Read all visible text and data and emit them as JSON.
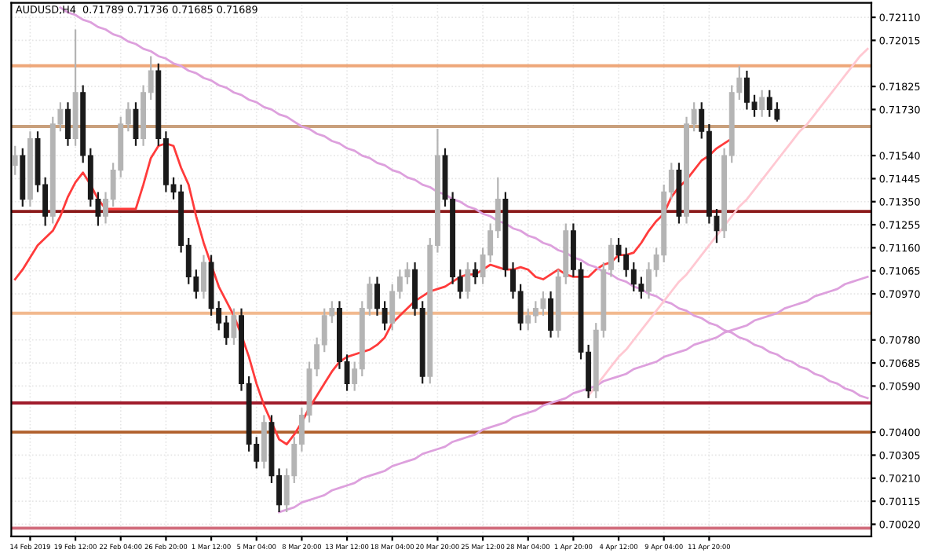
{
  "chart_data": {
    "type": "candlestick",
    "title": "AUDUSD,H4  0.71789 0.71736 0.71685 0.71689",
    "categories": [
      null,
      null,
      "14 Feb 2019",
      null,
      null,
      null,
      null,
      null,
      "19 Feb 12:00",
      null,
      null,
      null,
      null,
      null,
      "22 Feb 04:00",
      null,
      null,
      null,
      null,
      null,
      "26 Feb 20:00",
      null,
      null,
      null,
      null,
      null,
      "1 Mar 12:00",
      null,
      null,
      null,
      null,
      null,
      "5 Mar 04:00",
      null,
      null,
      null,
      null,
      null,
      "8 Mar 20:00",
      null,
      null,
      null,
      null,
      null,
      "13 Mar 12:00",
      null,
      null,
      null,
      null,
      null,
      "18 Mar 04:00",
      null,
      null,
      null,
      null,
      null,
      "20 Mar 20:00",
      null,
      null,
      null,
      null,
      null,
      "25 Mar 12:00",
      null,
      null,
      null,
      null,
      null,
      "28 Mar 04:00",
      null,
      null,
      null,
      null,
      null,
      "1 Apr 20:00",
      null,
      null,
      null,
      null,
      null,
      "4 Apr 12:00",
      null,
      null,
      null,
      null,
      null,
      "9 Apr 04:00",
      null,
      null,
      null,
      null,
      null,
      "11 Apr 20:00",
      null,
      null,
      null,
      null,
      null,
      null,
      null,
      null,
      null,
      null,
      null,
      null,
      null,
      null,
      null,
      null,
      null,
      null,
      null,
      null,
      null
    ],
    "ohlc": [
      [
        0.715,
        0.7158,
        0.7146,
        0.7154
      ],
      [
        0.7154,
        0.7157,
        0.7133,
        0.7136
      ],
      [
        0.7136,
        0.7164,
        0.7133,
        0.7161
      ],
      [
        0.7161,
        0.7164,
        0.7139,
        0.7142
      ],
      [
        0.7142,
        0.7145,
        0.7125,
        0.7129
      ],
      [
        0.7129,
        0.717,
        0.7126,
        0.7167
      ],
      [
        0.7167,
        0.7176,
        0.7164,
        0.7173
      ],
      [
        0.7173,
        0.7176,
        0.7158,
        0.7161
      ],
      [
        0.7161,
        0.7206,
        0.7158,
        0.718
      ],
      [
        0.718,
        0.7183,
        0.7151,
        0.7154
      ],
      [
        0.7154,
        0.7157,
        0.7133,
        0.7136
      ],
      [
        0.7136,
        0.7139,
        0.7125,
        0.7129
      ],
      [
        0.7129,
        0.7139,
        0.7126,
        0.7136
      ],
      [
        0.7136,
        0.7151,
        0.7133,
        0.7148
      ],
      [
        0.7148,
        0.717,
        0.7145,
        0.7167
      ],
      [
        0.7167,
        0.7176,
        0.7164,
        0.7173
      ],
      [
        0.7173,
        0.7176,
        0.7158,
        0.7161
      ],
      [
        0.7161,
        0.7183,
        0.7158,
        0.718
      ],
      [
        0.718,
        0.7195,
        0.7177,
        0.7189
      ],
      [
        0.7189,
        0.7192,
        0.7158,
        0.7161
      ],
      [
        0.7161,
        0.7164,
        0.7139,
        0.7142
      ],
      [
        0.7142,
        0.7145,
        0.7136,
        0.7139
      ],
      [
        0.7139,
        0.7142,
        0.7114,
        0.7117
      ],
      [
        0.7117,
        0.712,
        0.7101,
        0.7104
      ],
      [
        0.7104,
        0.7107,
        0.7095,
        0.7098
      ],
      [
        0.7098,
        0.7113,
        0.7095,
        0.711
      ],
      [
        0.711,
        0.7113,
        0.7088,
        0.7091
      ],
      [
        0.7091,
        0.7094,
        0.7082,
        0.7085
      ],
      [
        0.7085,
        0.7088,
        0.7076,
        0.7079
      ],
      [
        0.7079,
        0.7091,
        0.7076,
        0.7088
      ],
      [
        0.7088,
        0.7091,
        0.7057,
        0.706
      ],
      [
        0.706,
        0.7063,
        0.7032,
        0.7035
      ],
      [
        0.7035,
        0.7038,
        0.7025,
        0.7028
      ],
      [
        0.7028,
        0.7047,
        0.7025,
        0.7044
      ],
      [
        0.7044,
        0.7047,
        0.7019,
        0.7022
      ],
      [
        0.7022,
        0.7025,
        0.7007,
        0.701
      ],
      [
        0.701,
        0.7025,
        0.7007,
        0.7022
      ],
      [
        0.7022,
        0.7038,
        0.7019,
        0.7035
      ],
      [
        0.7035,
        0.705,
        0.7032,
        0.7047
      ],
      [
        0.7047,
        0.7069,
        0.7044,
        0.7066
      ],
      [
        0.7066,
        0.7079,
        0.7063,
        0.7076
      ],
      [
        0.7076,
        0.7091,
        0.7073,
        0.7088
      ],
      [
        0.7088,
        0.7094,
        0.7085,
        0.7091
      ],
      [
        0.7091,
        0.7094,
        0.7066,
        0.7069
      ],
      [
        0.7069,
        0.7072,
        0.7057,
        0.706
      ],
      [
        0.706,
        0.7069,
        0.7057,
        0.7066
      ],
      [
        0.7066,
        0.7094,
        0.7063,
        0.7091
      ],
      [
        0.7091,
        0.7104,
        0.7088,
        0.7101
      ],
      [
        0.7101,
        0.7104,
        0.7088,
        0.7091
      ],
      [
        0.7091,
        0.7094,
        0.7082,
        0.7085
      ],
      [
        0.7085,
        0.7101,
        0.7082,
        0.7098
      ],
      [
        0.7098,
        0.7107,
        0.7095,
        0.7104
      ],
      [
        0.7104,
        0.711,
        0.7101,
        0.7107
      ],
      [
        0.7107,
        0.711,
        0.7088,
        0.7091
      ],
      [
        0.7091,
        0.7094,
        0.706,
        0.7063
      ],
      [
        0.7063,
        0.712,
        0.706,
        0.7117
      ],
      [
        0.7117,
        0.7165,
        0.7114,
        0.7154
      ],
      [
        0.7154,
        0.7157,
        0.7133,
        0.7136
      ],
      [
        0.7136,
        0.7139,
        0.7101,
        0.7104
      ],
      [
        0.7104,
        0.7107,
        0.7095,
        0.7098
      ],
      [
        0.7098,
        0.711,
        0.7095,
        0.7107
      ],
      [
        0.7107,
        0.711,
        0.7101,
        0.7104
      ],
      [
        0.7104,
        0.7116,
        0.7101,
        0.7113
      ],
      [
        0.7113,
        0.7126,
        0.711,
        0.7123
      ],
      [
        0.7123,
        0.7145,
        0.712,
        0.7136
      ],
      [
        0.7136,
        0.7139,
        0.7104,
        0.7107
      ],
      [
        0.7107,
        0.711,
        0.7095,
        0.7098
      ],
      [
        0.7098,
        0.7101,
        0.7082,
        0.7085
      ],
      [
        0.7085,
        0.7091,
        0.7082,
        0.7088
      ],
      [
        0.7088,
        0.7094,
        0.7085,
        0.7091
      ],
      [
        0.7091,
        0.7098,
        0.7088,
        0.7095
      ],
      [
        0.7095,
        0.7098,
        0.7079,
        0.7082
      ],
      [
        0.7082,
        0.7107,
        0.7079,
        0.7104
      ],
      [
        0.7104,
        0.7126,
        0.7101,
        0.7123
      ],
      [
        0.7123,
        0.7126,
        0.7104,
        0.7107
      ],
      [
        0.7107,
        0.711,
        0.707,
        0.7073
      ],
      [
        0.7073,
        0.7076,
        0.7054,
        0.7057
      ],
      [
        0.7057,
        0.7085,
        0.7054,
        0.7082
      ],
      [
        0.7082,
        0.711,
        0.7079,
        0.7107
      ],
      [
        0.7107,
        0.712,
        0.7104,
        0.7117
      ],
      [
        0.7117,
        0.712,
        0.711,
        0.7113
      ],
      [
        0.7113,
        0.7116,
        0.7104,
        0.7107
      ],
      [
        0.7107,
        0.711,
        0.7098,
        0.7101
      ],
      [
        0.7101,
        0.7104,
        0.7095,
        0.7098
      ],
      [
        0.7098,
        0.711,
        0.7095,
        0.7107
      ],
      [
        0.7107,
        0.7116,
        0.7104,
        0.7113
      ],
      [
        0.7113,
        0.7142,
        0.711,
        0.7139
      ],
      [
        0.7139,
        0.7151,
        0.7136,
        0.7148
      ],
      [
        0.7148,
        0.7151,
        0.7126,
        0.7129
      ],
      [
        0.7129,
        0.717,
        0.7126,
        0.7167
      ],
      [
        0.7167,
        0.7176,
        0.7164,
        0.7173
      ],
      [
        0.7173,
        0.7176,
        0.7161,
        0.7164
      ],
      [
        0.7164,
        0.7167,
        0.7126,
        0.7129
      ],
      [
        0.7129,
        0.7132,
        0.7118,
        0.7123
      ],
      [
        0.7123,
        0.7157,
        0.712,
        0.7154
      ],
      [
        0.7154,
        0.7183,
        0.7151,
        0.718
      ],
      [
        0.718,
        0.7191,
        0.7177,
        0.7186
      ],
      [
        0.7186,
        0.7189,
        0.7173,
        0.7176
      ],
      [
        0.7176,
        0.7179,
        0.717,
        0.7173
      ],
      [
        0.7173,
        0.7181,
        0.717,
        0.7178
      ],
      [
        0.7178,
        0.7181,
        0.717,
        0.7173
      ],
      [
        0.7173,
        0.7176,
        0.7168,
        0.71689
      ],
      null,
      null,
      null,
      null,
      null,
      null,
      null,
      null,
      null,
      null,
      null,
      null
    ],
    "colors": [
      "#b4b4b4",
      "#1a1a1a",
      "#b4b4b4",
      "#1a1a1a",
      "#1a1a1a",
      "#b4b4b4",
      "#b4b4b4",
      "#1a1a1a",
      "#b4b4b4",
      "#1a1a1a",
      "#1a1a1a",
      "#1a1a1a",
      "#b4b4b4",
      "#b4b4b4",
      "#b4b4b4",
      "#b4b4b4",
      "#1a1a1a",
      "#b4b4b4",
      "#b4b4b4",
      "#1a1a1a",
      "#1a1a1a",
      "#1a1a1a",
      "#1a1a1a",
      "#1a1a1a",
      "#1a1a1a",
      "#b4b4b4",
      "#1a1a1a",
      "#1a1a1a",
      "#1a1a1a",
      "#b4b4b4",
      "#1a1a1a",
      "#1a1a1a",
      "#1a1a1a",
      "#b4b4b4",
      "#1a1a1a",
      "#1a1a1a",
      "#b4b4b4",
      "#b4b4b4",
      "#b4b4b4",
      "#b4b4b4",
      "#b4b4b4",
      "#b4b4b4",
      "#b4b4b4",
      "#1a1a1a",
      "#1a1a1a",
      "#b4b4b4",
      "#b4b4b4",
      "#b4b4b4",
      "#1a1a1a",
      "#1a1a1a",
      "#b4b4b4",
      "#b4b4b4",
      "#b4b4b4",
      "#1a1a1a",
      "#1a1a1a",
      "#b4b4b4",
      "#b4b4b4",
      "#1a1a1a",
      "#1a1a1a",
      "#1a1a1a",
      "#b4b4b4",
      "#1a1a1a",
      "#b4b4b4",
      "#b4b4b4",
      "#b4b4b4",
      "#1a1a1a",
      "#1a1a1a",
      "#1a1a1a",
      "#b4b4b4",
      "#b4b4b4",
      "#b4b4b4",
      "#1a1a1a",
      "#b4b4b4",
      "#b4b4b4",
      "#1a1a1a",
      "#1a1a1a",
      "#1a1a1a",
      "#b4b4b4",
      "#b4b4b4",
      "#b4b4b4",
      "#1a1a1a",
      "#1a1a1a",
      "#1a1a1a",
      "#1a1a1a",
      "#b4b4b4",
      "#b4b4b4",
      "#b4b4b4",
      "#b4b4b4",
      "#1a1a1a",
      "#b4b4b4",
      "#b4b4b4",
      "#1a1a1a",
      "#1a1a1a",
      "#1a1a1a",
      "#b4b4b4",
      "#b4b4b4",
      "#b4b4b4",
      "#1a1a1a",
      "#1a1a1a",
      "#b4b4b4",
      "#1a1a1a",
      "#1a1a1a",
      null,
      null,
      null,
      null,
      null,
      null,
      null,
      null,
      null,
      null,
      null,
      null
    ],
    "series": [
      {
        "type": "line",
        "color": "#ff3b3b",
        "values": [
          0.7103,
          0.7107,
          0.7112,
          0.7117,
          0.712,
          0.7123,
          0.7129,
          0.7137,
          0.7143,
          0.7147,
          0.7142,
          0.7136,
          0.7132,
          0.7132,
          0.7132,
          0.7132,
          0.7132,
          0.7142,
          0.7153,
          0.7158,
          0.7159,
          0.7158,
          0.7149,
          0.7142,
          0.7129,
          0.7118,
          0.7109,
          0.71,
          0.7094,
          0.7088,
          0.708,
          0.7071,
          0.706,
          0.7051,
          0.7044,
          0.7037,
          0.7035,
          0.7039,
          0.7044,
          0.705,
          0.7055,
          0.706,
          0.7065,
          0.7069,
          0.7071,
          0.7072,
          0.7073,
          0.7074,
          0.7076,
          0.7079,
          0.7085,
          0.7088,
          0.7091,
          0.7094,
          0.7096,
          0.7098,
          0.7099,
          0.71,
          0.7102,
          0.7104,
          0.7105,
          0.7105,
          0.7107,
          0.7109,
          0.7108,
          0.7107,
          0.7107,
          0.7108,
          0.7107,
          0.7104,
          0.7103,
          0.7105,
          0.7107,
          0.7105,
          0.7104,
          0.7104,
          0.7104,
          0.7107,
          0.7109,
          0.711,
          0.7113,
          0.7113,
          0.7114,
          0.7118,
          0.7123,
          0.7127,
          0.713,
          0.7137,
          0.7141,
          0.7144,
          0.7148,
          0.7152,
          0.7154,
          0.7157,
          0.7159,
          0.7161,
          null,
          null,
          null,
          null,
          null,
          null,
          null,
          null,
          null,
          null,
          null,
          null,
          null,
          null,
          null,
          null,
          null,
          null
        ]
      },
      {
        "type": "line",
        "color": "#dda0dd",
        "values": [
          null,
          null,
          null,
          null,
          null,
          null,
          0.7215,
          0.7213,
          0.7212,
          0.721,
          0.7209,
          0.7207,
          0.7206,
          0.7204,
          0.7203,
          0.7201,
          0.72,
          0.7198,
          0.7197,
          0.7195,
          0.7194,
          0.7192,
          0.7191,
          0.7189,
          0.7188,
          0.7186,
          0.7185,
          0.7183,
          0.7182,
          0.718,
          0.7179,
          0.7177,
          0.7176,
          0.7174,
          0.7173,
          0.7171,
          0.717,
          0.7168,
          0.7166,
          0.7165,
          0.7163,
          0.7162,
          0.716,
          0.7159,
          0.7157,
          0.7156,
          0.7154,
          0.7153,
          0.7151,
          0.715,
          0.7148,
          0.7147,
          0.7145,
          0.7144,
          0.7142,
          0.7141,
          0.7139,
          0.7138,
          0.7136,
          0.7135,
          0.7133,
          0.7132,
          0.713,
          0.7129,
          0.7127,
          0.7126,
          0.7124,
          0.7123,
          0.7121,
          0.712,
          0.7118,
          0.7117,
          0.7115,
          0.7114,
          0.7112,
          0.7111,
          0.7109,
          0.7108,
          0.7106,
          0.7105,
          0.7103,
          0.7102,
          0.71,
          0.7099,
          0.7097,
          0.7096,
          0.7094,
          0.7093,
          0.7091,
          0.709,
          0.7088,
          0.7087,
          0.7085,
          0.7084,
          0.7082,
          0.7081,
          0.7079,
          0.7078,
          0.7076,
          0.7075,
          0.7073,
          0.7072,
          0.707,
          0.7069,
          0.7067,
          0.7066,
          0.7064,
          0.7063,
          0.7061,
          0.706,
          0.7058,
          0.7057,
          0.7055,
          0.7054
        ]
      },
      {
        "type": "line",
        "color": "#dda0dd",
        "values": [
          null,
          null,
          null,
          null,
          null,
          null,
          null,
          null,
          null,
          null,
          null,
          null,
          null,
          null,
          null,
          null,
          null,
          null,
          null,
          null,
          null,
          null,
          null,
          null,
          null,
          null,
          null,
          null,
          null,
          null,
          null,
          null,
          null,
          null,
          null,
          0.7007,
          0.7008,
          0.7009,
          0.7011,
          0.7012,
          0.7013,
          0.7014,
          0.7016,
          0.7017,
          0.7018,
          0.7019,
          0.7021,
          0.7022,
          0.7023,
          0.7024,
          0.7026,
          0.7027,
          0.7028,
          0.7029,
          0.7031,
          0.7032,
          0.7033,
          0.7034,
          0.7036,
          0.7037,
          0.7038,
          0.7039,
          0.7041,
          0.7042,
          0.7043,
          0.7044,
          0.7046,
          0.7047,
          0.7048,
          0.7049,
          0.7051,
          0.7052,
          0.7053,
          0.7054,
          0.7056,
          0.7057,
          0.7058,
          0.7059,
          0.7061,
          0.7062,
          0.7063,
          0.7064,
          0.7066,
          0.7067,
          0.7068,
          0.7069,
          0.7071,
          0.7072,
          0.7073,
          0.7074,
          0.7076,
          0.7077,
          0.7078,
          0.7079,
          0.7081,
          0.7082,
          0.7083,
          0.7084,
          0.7086,
          0.7087,
          0.7088,
          0.7089,
          0.7091,
          0.7092,
          0.7093,
          0.7094,
          0.7096,
          0.7097,
          0.7098,
          0.7099,
          0.7101,
          0.7102,
          0.7103,
          0.7104
        ]
      },
      {
        "type": "line",
        "color": "#ffc8d2",
        "values": [
          null,
          null,
          null,
          null,
          null,
          null,
          null,
          null,
          null,
          null,
          null,
          null,
          null,
          null,
          null,
          null,
          null,
          null,
          null,
          null,
          null,
          null,
          null,
          null,
          null,
          null,
          null,
          null,
          null,
          null,
          null,
          null,
          null,
          null,
          null,
          null,
          null,
          null,
          null,
          null,
          null,
          null,
          null,
          null,
          null,
          null,
          null,
          null,
          null,
          null,
          null,
          null,
          null,
          null,
          null,
          null,
          null,
          null,
          null,
          null,
          null,
          null,
          null,
          null,
          null,
          null,
          null,
          null,
          null,
          null,
          null,
          null,
          null,
          null,
          null,
          null,
          0.7055,
          0.7059,
          0.7063,
          0.7067,
          0.7071,
          0.7074,
          0.7078,
          0.7082,
          0.7086,
          0.709,
          0.7094,
          0.7098,
          0.7102,
          0.7105,
          0.7109,
          0.7113,
          0.7117,
          0.7121,
          0.7125,
          0.7129,
          0.7133,
          0.7136,
          0.714,
          0.7144,
          0.7148,
          0.7152,
          0.7156,
          0.716,
          0.7164,
          0.7167,
          0.7171,
          0.7175,
          0.7179,
          0.7183,
          0.7187,
          0.7191,
          0.7195,
          0.7198
        ]
      }
    ],
    "ref_lines": [
      {
        "axis": "y",
        "value": 0.7191,
        "color": "#eea77a"
      },
      {
        "axis": "y",
        "value": 0.7166,
        "color": "#c9a07c"
      },
      {
        "axis": "y",
        "value": 0.7131,
        "color": "#8b1a1a"
      },
      {
        "axis": "y",
        "value": 0.7089,
        "color": "#f2b98e"
      },
      {
        "axis": "y",
        "value": 0.7052,
        "color": "#a01c2c"
      },
      {
        "axis": "y",
        "value": 0.704,
        "color": "#b0602c"
      },
      {
        "axis": "y",
        "value": 0.70004,
        "color": "#d06a7a"
      }
    ],
    "ylim": [
      0.6997,
      0.7217
    ],
    "yticks": [
      {
        "value": 0.7211,
        "label": "0.72110"
      },
      0.72015,
      0.71825,
      {
        "value": 0.7173,
        "label": "0.71730"
      },
      {
        "value": 0.7154,
        "label": "0.71540"
      },
      0.71445,
      {
        "value": 0.7135,
        "label": "0.71350"
      },
      0.71255,
      {
        "value": 0.7116,
        "label": "0.71160"
      },
      0.71065,
      {
        "value": 0.7097,
        "label": "0.70970"
      },
      {
        "value": 0.7078,
        "label": "0.70780"
      },
      0.70685,
      {
        "value": 0.7059,
        "label": "0.70590"
      },
      {
        "value": 0.704,
        "label": "0.70400"
      },
      0.70305,
      {
        "value": 0.7021,
        "label": "0.70210"
      },
      0.70115,
      {
        "value": 0.7002,
        "label": "0.70020"
      }
    ],
    "grid": true
  }
}
